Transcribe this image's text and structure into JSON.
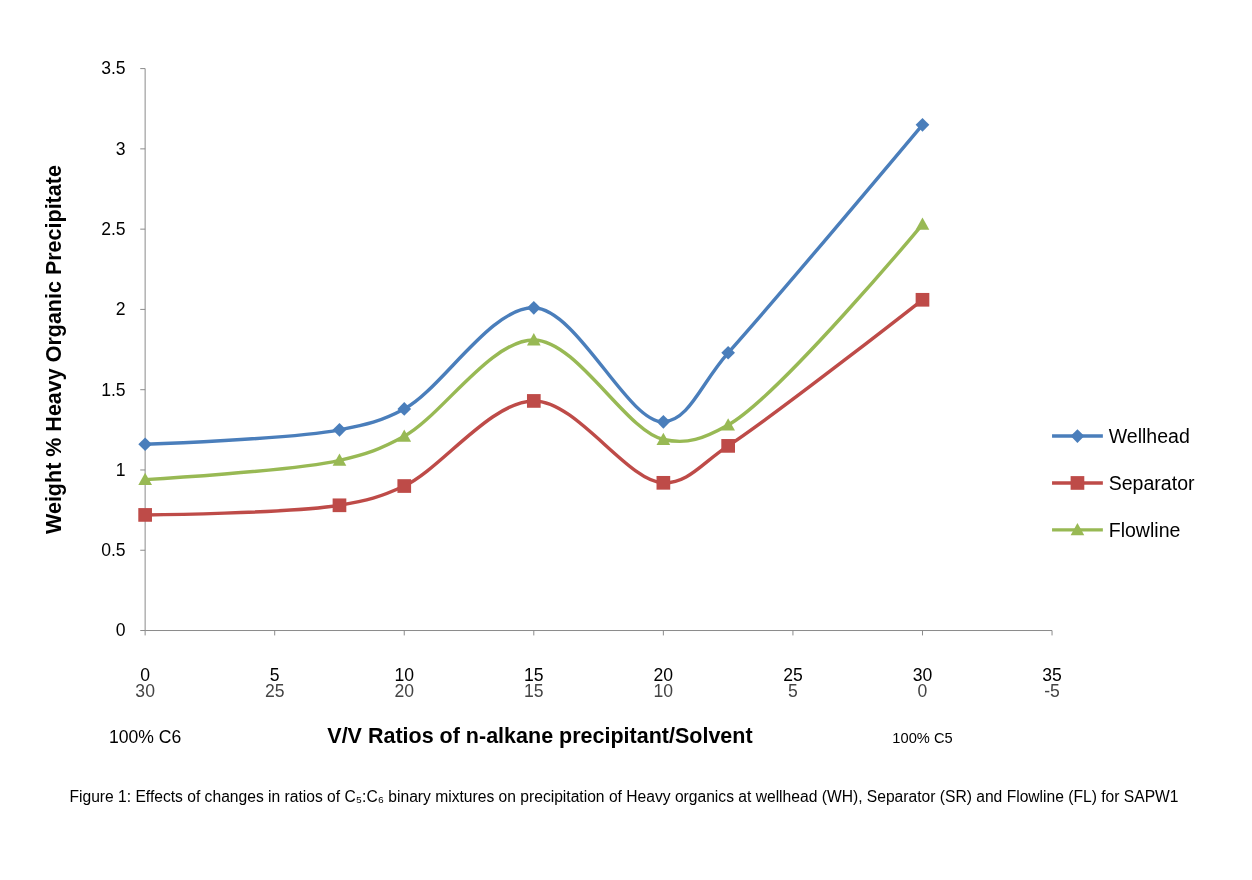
{
  "chart_data": {
    "type": "line",
    "xlabel": "V/V Ratios of n-alkane precipitant/Solvent",
    "ylabel": "Weight % Heavy Organic Precipitate",
    "x": [
      0,
      7.5,
      10,
      15,
      20,
      22.5,
      30
    ],
    "series": [
      {
        "name": "Wellhead",
        "color": "#4a7ebb",
        "marker": "diamond",
        "values": [
          1.16,
          1.25,
          1.38,
          2.01,
          1.3,
          1.73,
          3.15
        ]
      },
      {
        "name": "Separator",
        "color": "#be4b48",
        "marker": "square",
        "values": [
          0.72,
          0.78,
          0.9,
          1.43,
          0.92,
          1.15,
          2.06
        ]
      },
      {
        "name": "Flowline",
        "color": "#98b954",
        "marker": "triangle",
        "values": [
          0.94,
          1.06,
          1.21,
          1.81,
          1.19,
          1.28,
          2.53
        ]
      }
    ],
    "xlim": [
      0,
      35
    ],
    "xticks": [
      0,
      5,
      10,
      15,
      20,
      25,
      30,
      35
    ],
    "x2lim": [
      30,
      -5
    ],
    "x2ticks": [
      30,
      25,
      20,
      15,
      10,
      5,
      0,
      -5
    ],
    "ylim": [
      0,
      3.5
    ],
    "yticks": [
      0,
      0.5,
      1,
      1.5,
      2,
      2.5,
      3,
      3.5
    ],
    "grid": false,
    "legend": "right",
    "line_style": "solid",
    "annotations": [
      "100% C6",
      "100% C5",
      "Figure 1: Effects of changes in ratios of C₅:C₆ binary mixtures on precipitation of Heavy organics  at wellhead (WH), Separator (SR) and Flowline (FL) for SAPW1"
    ]
  }
}
